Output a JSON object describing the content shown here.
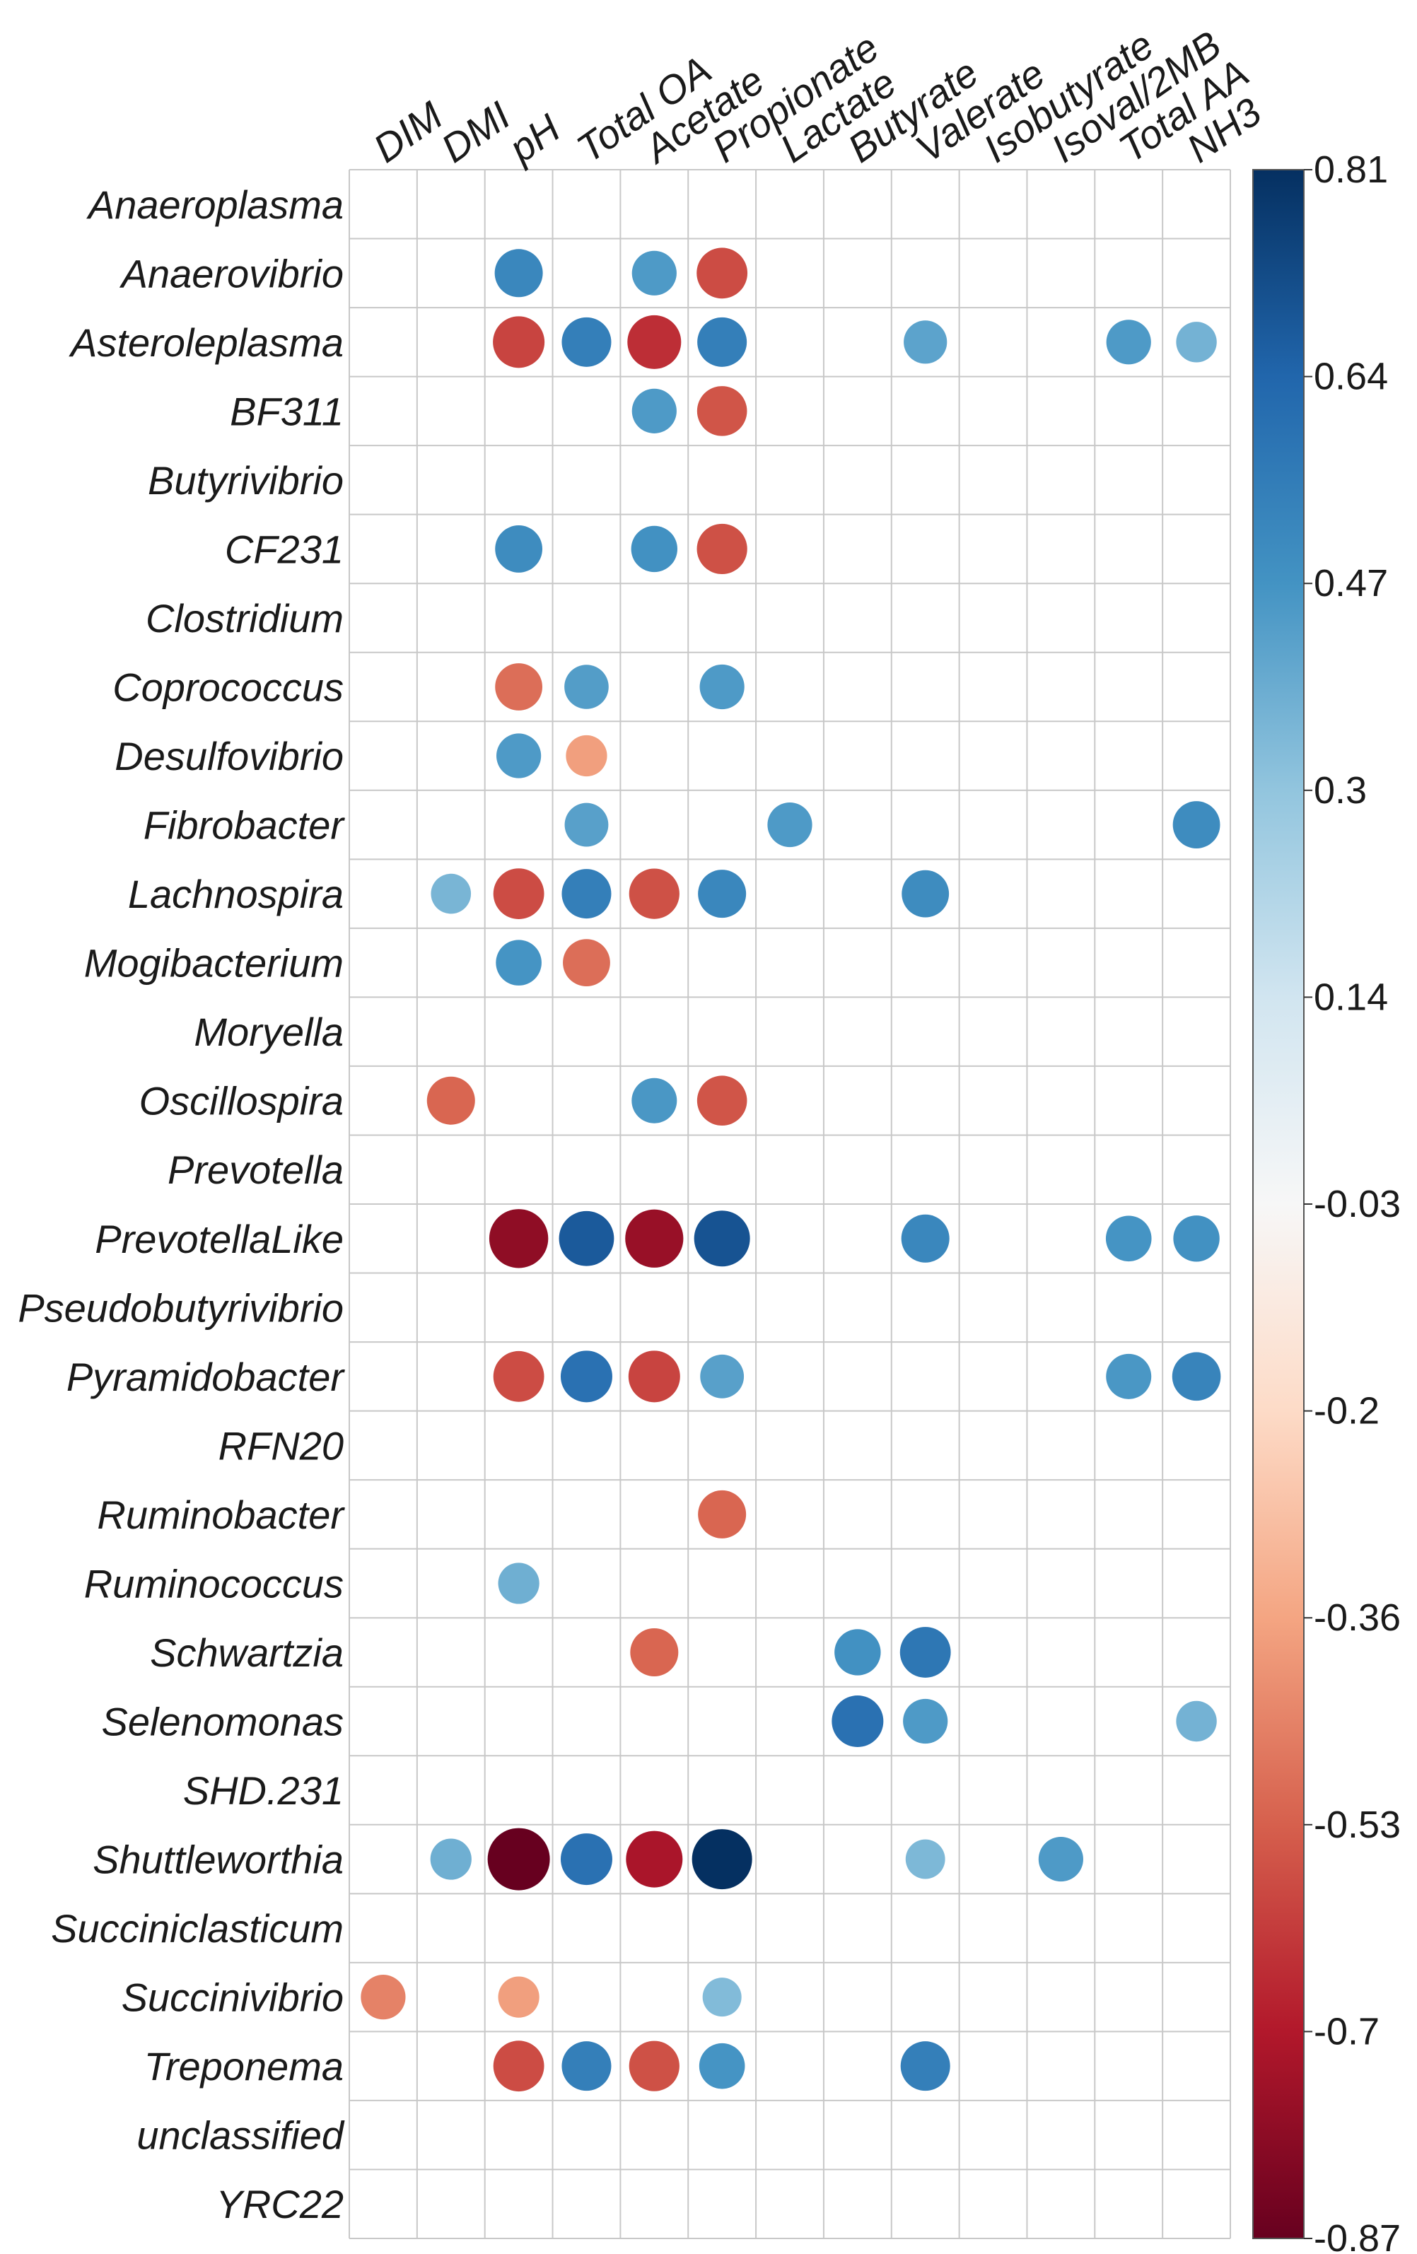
{
  "chart_data": {
    "type": "heatmap",
    "title": "",
    "columns": [
      "DIM",
      "DMI",
      "pH",
      "Total OA",
      "Acetate",
      "Propionate",
      "Lactate",
      "Butyrate",
      "Valerate",
      "Isobutyrate",
      "Isoval/2MB",
      "Total AA",
      "NH3"
    ],
    "rows": [
      "Anaeroplasma",
      "Anaerovibrio",
      "Asteroleplasma",
      "BF311",
      "Butyrivibrio",
      "CF231",
      "Clostridium",
      "Coprococcus",
      "Desulfovibrio",
      "Fibrobacter",
      "Lachnospira",
      "Mogibacterium",
      "Moryella",
      "Oscillospira",
      "Prevotella",
      "PrevotellaLike",
      "Pseudobutyrivibrio",
      "Pyramidobacter",
      "RFN20",
      "Ruminobacter",
      "Ruminococcus",
      "Schwartzia",
      "Selenomonas",
      "SHD.231",
      "Shuttleworthia",
      "Succiniclasticum",
      "Succinivibrio",
      "Treponema",
      "unclassified",
      "YRC22"
    ],
    "values": [
      [
        null,
        null,
        null,
        null,
        null,
        null,
        null,
        null,
        null,
        null,
        null,
        null,
        null
      ],
      [
        null,
        null,
        0.52,
        null,
        0.45,
        -0.58,
        null,
        null,
        null,
        null,
        null,
        null,
        null
      ],
      [
        null,
        null,
        -0.6,
        0.55,
        -0.65,
        0.55,
        null,
        null,
        0.42,
        null,
        null,
        0.45,
        0.37
      ],
      [
        null,
        null,
        null,
        null,
        0.45,
        -0.56,
        null,
        null,
        null,
        null,
        null,
        null,
        null
      ],
      [
        null,
        null,
        null,
        null,
        null,
        null,
        null,
        null,
        null,
        null,
        null,
        null,
        null
      ],
      [
        null,
        null,
        0.5,
        null,
        0.48,
        -0.57,
        null,
        null,
        null,
        null,
        null,
        null,
        null
      ],
      [
        null,
        null,
        null,
        null,
        null,
        null,
        null,
        null,
        null,
        null,
        null,
        null,
        null
      ],
      [
        null,
        null,
        -0.5,
        0.44,
        null,
        0.45,
        null,
        null,
        null,
        null,
        null,
        null,
        null
      ],
      [
        null,
        null,
        0.45,
        -0.38,
        null,
        null,
        null,
        null,
        null,
        null,
        null,
        null,
        null
      ],
      [
        null,
        null,
        null,
        0.43,
        null,
        null,
        0.45,
        null,
        null,
        null,
        null,
        null,
        0.5
      ],
      [
        null,
        0.36,
        -0.58,
        0.55,
        -0.57,
        0.52,
        null,
        null,
        0.5,
        null,
        null,
        null,
        null
      ],
      [
        null,
        null,
        0.47,
        -0.5,
        null,
        null,
        null,
        null,
        null,
        null,
        null,
        null,
        null
      ],
      [
        null,
        null,
        null,
        null,
        null,
        null,
        null,
        null,
        null,
        null,
        null,
        null,
        null
      ],
      [
        null,
        -0.52,
        null,
        null,
        0.46,
        -0.56,
        null,
        null,
        null,
        null,
        null,
        null,
        null
      ],
      [
        null,
        null,
        null,
        null,
        null,
        null,
        null,
        null,
        null,
        null,
        null,
        null,
        null
      ],
      [
        null,
        null,
        -0.78,
        0.68,
        -0.76,
        0.7,
        null,
        null,
        0.52,
        null,
        null,
        0.47,
        0.48
      ],
      [
        null,
        null,
        null,
        null,
        null,
        null,
        null,
        null,
        null,
        null,
        null,
        null,
        null
      ],
      [
        null,
        null,
        -0.58,
        0.6,
        -0.6,
        0.43,
        null,
        null,
        null,
        null,
        null,
        0.46,
        0.53
      ],
      [
        null,
        null,
        null,
        null,
        null,
        null,
        null,
        null,
        null,
        null,
        null,
        null,
        null
      ],
      [
        null,
        null,
        null,
        null,
        null,
        -0.52,
        null,
        null,
        null,
        null,
        null,
        null,
        null
      ],
      [
        null,
        null,
        0.38,
        null,
        null,
        null,
        null,
        null,
        null,
        null,
        null,
        null,
        null
      ],
      [
        null,
        null,
        null,
        null,
        -0.52,
        null,
        null,
        0.48,
        0.58,
        null,
        null,
        null,
        null
      ],
      [
        null,
        null,
        null,
        null,
        null,
        null,
        null,
        0.6,
        0.45,
        null,
        null,
        null,
        0.37
      ],
      [
        null,
        null,
        null,
        null,
        null,
        null,
        null,
        null,
        null,
        null,
        null,
        null,
        null
      ],
      [
        null,
        0.38,
        -0.87,
        0.6,
        -0.72,
        0.81,
        null,
        null,
        0.35,
        null,
        0.45,
        null,
        null
      ],
      [
        null,
        null,
        null,
        null,
        null,
        null,
        null,
        null,
        null,
        null,
        null,
        null,
        null
      ],
      [
        -0.45,
        null,
        -0.38,
        null,
        null,
        0.34,
        null,
        null,
        null,
        null,
        null,
        null,
        null
      ],
      [
        null,
        null,
        -0.58,
        0.55,
        -0.57,
        0.47,
        null,
        null,
        0.55,
        null,
        null,
        null,
        null
      ],
      [
        null,
        null,
        null,
        null,
        null,
        null,
        null,
        null,
        null,
        null,
        null,
        null,
        null
      ],
      [
        null,
        null,
        null,
        null,
        null,
        null,
        null,
        null,
        null,
        null,
        null,
        null,
        null
      ]
    ],
    "colorbar": {
      "min": -0.87,
      "max": 0.81,
      "ticks": [
        "0.81",
        "0.64",
        "0.47",
        "0.3",
        "0.14",
        "-0.03",
        "-0.2",
        "-0.36",
        "-0.53",
        "-0.7",
        "-0.87"
      ],
      "colors": [
        "#67001f",
        "#b2182b",
        "#d6604d",
        "#f4a582",
        "#fddbc7",
        "#f7f7f7",
        "#d1e5f0",
        "#92c5de",
        "#4393c3",
        "#2166ac",
        "#053061"
      ]
    }
  }
}
